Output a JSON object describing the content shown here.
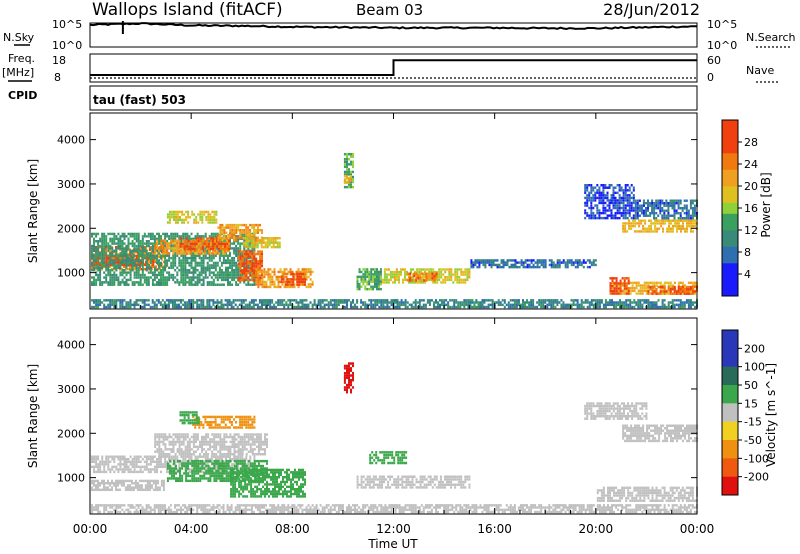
{
  "header": {
    "station": "Wallops Island (fitACF)",
    "beam": "Beam 03",
    "date": "28/Jun/2012"
  },
  "strip_labels": {
    "nsky": "N.Sky",
    "nsky_hi": "10^5",
    "nsky_lo": "10^0",
    "nsearch_hi": "10^5",
    "nsearch_lo": "10^0",
    "nsearch": "N.Search",
    "freq": "Freq.",
    "freq_unit": "[MHz]",
    "freq_hi": "18",
    "freq_lo": "8",
    "nave_hi": "60",
    "nave_lo": "0",
    "nave": "Nave",
    "cpid": "CPID",
    "cpid_value": "tau (fast) 503"
  },
  "chart_data": [
    {
      "type": "line",
      "name": "N.Sky / N.Search",
      "x": [
        "00:00",
        "02:00",
        "04:00",
        "06:00",
        "08:00",
        "10:00",
        "12:00",
        "14:00",
        "16:00",
        "18:00",
        "20:00",
        "22:00",
        "24:00"
      ],
      "sky_log10": [
        4.6,
        4.9,
        4.5,
        4.4,
        4.2,
        4.1,
        4.0,
        4.0,
        4.0,
        3.9,
        3.9,
        4.1,
        4.3
      ],
      "ylim_log10": [
        0,
        5
      ],
      "spike_hour": 1.3
    },
    {
      "type": "line",
      "name": "Freq. / Nave",
      "x_hours": [
        0,
        12,
        12,
        24
      ],
      "freq_mhz": [
        10.5,
        10.5,
        15.8,
        15.8
      ],
      "freq_ylim": [
        8,
        18
      ],
      "nave_ylim": [
        0,
        60
      ]
    },
    {
      "type": "heatmap",
      "ylabel": "Slant Range [km]",
      "yticks": [
        1000,
        2000,
        3000,
        4000
      ],
      "ylim": [
        180,
        4600
      ],
      "xlim_hours": [
        0,
        24
      ],
      "colorbar": {
        "label": "Power [dB]",
        "ticks": [
          4,
          8,
          12,
          16,
          20,
          24,
          28
        ],
        "range": [
          0,
          32
        ]
      },
      "regions": [
        {
          "t0": 0.0,
          "t1": 3.0,
          "r0": 1050,
          "r1": 1600,
          "v": 24
        },
        {
          "t0": 0.0,
          "t1": 2.5,
          "r0": 1150,
          "r1": 1400,
          "v": 28
        },
        {
          "t0": 0.0,
          "t1": 6.5,
          "r0": 700,
          "r1": 1900,
          "v": 12
        },
        {
          "t0": 2.5,
          "t1": 5.5,
          "r0": 1400,
          "r1": 1750,
          "v": 22
        },
        {
          "t0": 3.5,
          "t1": 5.5,
          "r0": 1500,
          "r1": 1800,
          "v": 26
        },
        {
          "t0": 3.0,
          "t1": 5.0,
          "r0": 2100,
          "r1": 2400,
          "v": 18
        },
        {
          "t0": 5.0,
          "t1": 6.8,
          "r0": 1700,
          "r1": 2100,
          "v": 22
        },
        {
          "t0": 5.8,
          "t1": 6.8,
          "r0": 800,
          "r1": 1500,
          "v": 26
        },
        {
          "t0": 6.5,
          "t1": 8.8,
          "r0": 650,
          "r1": 1100,
          "v": 22
        },
        {
          "t0": 7.5,
          "t1": 8.5,
          "r0": 700,
          "r1": 1000,
          "v": 28
        },
        {
          "t0": 6.0,
          "t1": 7.5,
          "r0": 1550,
          "r1": 1800,
          "v": 18
        },
        {
          "t0": 10.0,
          "t1": 10.4,
          "r0": 2900,
          "r1": 3700,
          "v": 14
        },
        {
          "t0": 10.0,
          "t1": 10.3,
          "r0": 3000,
          "r1": 3200,
          "v": 20
        },
        {
          "t0": 10.5,
          "t1": 11.5,
          "r0": 600,
          "r1": 1100,
          "v": 14
        },
        {
          "t0": 11.5,
          "t1": 15.0,
          "r0": 750,
          "r1": 1100,
          "v": 18
        },
        {
          "t0": 12.5,
          "t1": 13.7,
          "r0": 800,
          "r1": 1000,
          "v": 24
        },
        {
          "t0": 15.0,
          "t1": 20.0,
          "r0": 1100,
          "r1": 1300,
          "v": 8
        },
        {
          "t0": 19.5,
          "t1": 21.5,
          "r0": 2200,
          "r1": 3000,
          "v": 6
        },
        {
          "t0": 21.0,
          "t1": 24.0,
          "r0": 1900,
          "r1": 2200,
          "v": 20
        },
        {
          "t0": 21.5,
          "t1": 24.0,
          "r0": 2200,
          "r1": 2650,
          "v": 8
        },
        {
          "t0": 20.5,
          "t1": 24.0,
          "r0": 500,
          "r1": 800,
          "v": 20
        },
        {
          "t0": 20.5,
          "t1": 21.3,
          "r0": 500,
          "r1": 900,
          "v": 28
        },
        {
          "t0": 22.0,
          "t1": 24.0,
          "r0": 500,
          "r1": 700,
          "v": 26
        },
        {
          "t0": 0.0,
          "t1": 24.0,
          "r0": 200,
          "r1": 400,
          "v": 10
        }
      ]
    },
    {
      "type": "heatmap",
      "ylabel": "Slant Range [km]",
      "yticks": [
        1000,
        2000,
        3000,
        4000
      ],
      "ylim": [
        180,
        4600
      ],
      "xlim_hours": [
        0,
        24
      ],
      "xticks": [
        "00:00",
        "04:00",
        "08:00",
        "12:00",
        "16:00",
        "20:00",
        "00:00"
      ],
      "xlabel": "Time UT",
      "colorbar": {
        "label": "Velocity [m s^-1]",
        "ticks": [
          200,
          100,
          50,
          15,
          -15,
          -50,
          -100,
          -200
        ]
      },
      "regions": [
        {
          "t0": 0.0,
          "t1": 6.5,
          "r0": 1100,
          "r1": 1500,
          "v": 0
        },
        {
          "t0": 0.0,
          "t1": 3.0,
          "r0": 700,
          "r1": 950,
          "v": 0
        },
        {
          "t0": 2.5,
          "t1": 7.0,
          "r0": 1500,
          "r1": 2000,
          "v": 0
        },
        {
          "t0": 3.0,
          "t1": 7.0,
          "r0": 900,
          "r1": 1400,
          "v": 40
        },
        {
          "t0": 5.5,
          "t1": 8.5,
          "r0": 550,
          "r1": 1200,
          "v": 60
        },
        {
          "t0": 4.0,
          "t1": 6.5,
          "r0": 2100,
          "r1": 2400,
          "v": -60
        },
        {
          "t0": 3.5,
          "t1": 4.3,
          "r0": 2200,
          "r1": 2500,
          "v": 50
        },
        {
          "t0": 10.0,
          "t1": 10.4,
          "r0": 2900,
          "r1": 3600,
          "v": -220
        },
        {
          "t0": 10.5,
          "t1": 15.0,
          "r0": 750,
          "r1": 1050,
          "v": 0
        },
        {
          "t0": 11.0,
          "t1": 12.5,
          "r0": 1300,
          "r1": 1600,
          "v": 40
        },
        {
          "t0": 19.5,
          "t1": 22.0,
          "r0": 2300,
          "r1": 2700,
          "v": 0
        },
        {
          "t0": 21.0,
          "t1": 24.0,
          "r0": 1800,
          "r1": 2200,
          "v": 0
        },
        {
          "t0": 20.0,
          "t1": 24.0,
          "r0": 450,
          "r1": 800,
          "v": 0
        },
        {
          "t0": 0.0,
          "t1": 24.0,
          "r0": 200,
          "r1": 400,
          "v": 0
        }
      ]
    }
  ]
}
